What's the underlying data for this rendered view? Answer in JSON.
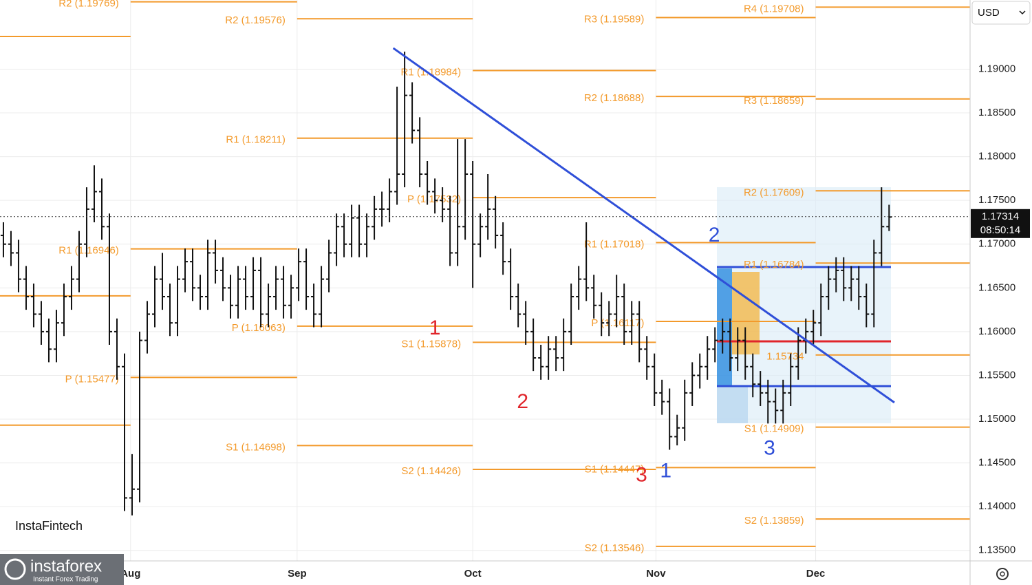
{
  "chart_data": {
    "type": "ohlc",
    "color": "#111111",
    "open": [
      1.171,
      1.17,
      1.169,
      1.166,
      1.164,
      1.162,
      1.16,
      1.158,
      1.161,
      1.164,
      1.166,
      1.17,
      1.174,
      1.176,
      1.172,
      1.16,
      1.156,
      1.141,
      1.142,
      1.159,
      1.162,
      1.166,
      1.164,
      1.161,
      1.166,
      1.168,
      1.165,
      1.164,
      1.169,
      1.167,
      1.165,
      1.163,
      1.166,
      1.164,
      1.167,
      1.162,
      1.164,
      1.166,
      1.163,
      1.165,
      1.168,
      1.164,
      1.162,
      1.166,
      1.169,
      1.172,
      1.17,
      1.173,
      1.17,
      1.172,
      1.174,
      1.174,
      1.176,
      1.178,
      1.187,
      1.183,
      1.178,
      1.176,
      1.175,
      1.174,
      1.169,
      1.172,
      1.178,
      1.17,
      1.172,
      1.174,
      1.171,
      1.168,
      1.164,
      1.162,
      1.16,
      1.157,
      1.156,
      1.158,
      1.157,
      1.16,
      1.164,
      1.166,
      1.165,
      1.163,
      1.161,
      1.162,
      1.164,
      1.16,
      1.162,
      1.158,
      1.156,
      1.153,
      1.152,
      1.148,
      1.149,
      1.153,
      1.155,
      1.156,
      1.158,
      1.159,
      1.16,
      1.157,
      1.159,
      1.156,
      1.154,
      1.153,
      1.152,
      1.151,
      1.153,
      1.156,
      1.159,
      1.16,
      1.161,
      1.164,
      1.166,
      1.167,
      1.165,
      1.166,
      1.164,
      1.162,
      1.169,
      1.172
    ],
    "high": [
      1.1725,
      1.1715,
      1.1705,
      1.1675,
      1.1655,
      1.1635,
      1.1615,
      1.1625,
      1.1655,
      1.1675,
      1.1715,
      1.1765,
      1.179,
      1.1775,
      1.1735,
      1.1615,
      1.1575,
      1.146,
      1.16,
      1.1635,
      1.1675,
      1.169,
      1.1655,
      1.1675,
      1.1695,
      1.1695,
      1.1665,
      1.1705,
      1.1705,
      1.1685,
      1.1665,
      1.1675,
      1.1675,
      1.1685,
      1.1685,
      1.1655,
      1.1675,
      1.1675,
      1.1665,
      1.1695,
      1.1695,
      1.1655,
      1.1675,
      1.1705,
      1.1735,
      1.1735,
      1.1745,
      1.1745,
      1.1735,
      1.1755,
      1.176,
      1.1775,
      1.188,
      1.192,
      1.1885,
      1.1845,
      1.1795,
      1.1775,
      1.1765,
      1.1755,
      1.182,
      1.182,
      1.1795,
      1.1735,
      1.178,
      1.1755,
      1.1725,
      1.1695,
      1.1655,
      1.1635,
      1.1615,
      1.1585,
      1.1595,
      1.1595,
      1.1615,
      1.1655,
      1.1675,
      1.1725,
      1.1665,
      1.1645,
      1.1635,
      1.1665,
      1.1655,
      1.1635,
      1.1635,
      1.1595,
      1.1575,
      1.1545,
      1.1535,
      1.1505,
      1.1545,
      1.1565,
      1.1575,
      1.1595,
      1.1605,
      1.1615,
      1.1615,
      1.1605,
      1.1605,
      1.1575,
      1.1555,
      1.1545,
      1.1535,
      1.1545,
      1.1575,
      1.1605,
      1.1615,
      1.1625,
      1.1655,
      1.1675,
      1.1685,
      1.1685,
      1.1675,
      1.1675,
      1.1655,
      1.1705,
      1.1765,
      1.1745
    ],
    "low": [
      1.1685,
      1.1675,
      1.1645,
      1.1625,
      1.1605,
      1.1585,
      1.1565,
      1.1565,
      1.1595,
      1.1625,
      1.1645,
      1.1685,
      1.1725,
      1.1705,
      1.1585,
      1.1545,
      1.1395,
      1.139,
      1.1405,
      1.1575,
      1.1605,
      1.1625,
      1.1595,
      1.1595,
      1.1645,
      1.1635,
      1.1625,
      1.1625,
      1.1655,
      1.1635,
      1.1615,
      1.1615,
      1.1625,
      1.1625,
      1.1605,
      1.1605,
      1.1625,
      1.1615,
      1.1615,
      1.1635,
      1.1625,
      1.1605,
      1.1605,
      1.1645,
      1.1675,
      1.1685,
      1.1685,
      1.1685,
      1.1685,
      1.1705,
      1.172,
      1.1725,
      1.1745,
      1.1765,
      1.1815,
      1.1765,
      1.1745,
      1.1735,
      1.1725,
      1.1675,
      1.1675,
      1.1705,
      1.165,
      1.1685,
      1.1705,
      1.1695,
      1.1665,
      1.1625,
      1.1605,
      1.1585,
      1.1555,
      1.1545,
      1.1545,
      1.1555,
      1.1555,
      1.1585,
      1.1625,
      1.1635,
      1.1615,
      1.1595,
      1.1595,
      1.1605,
      1.1585,
      1.1585,
      1.1565,
      1.1545,
      1.1515,
      1.1505,
      1.1465,
      1.147,
      1.1475,
      1.1515,
      1.1535,
      1.1545,
      1.1565,
      1.1575,
      1.1555,
      1.1555,
      1.1545,
      1.1525,
      1.1515,
      1.1495,
      1.1495,
      1.1495,
      1.1515,
      1.1545,
      1.1575,
      1.1585,
      1.1595,
      1.1625,
      1.1645,
      1.1635,
      1.1635,
      1.1625,
      1.1605,
      1.1605,
      1.1675,
      1.1715
    ],
    "close": [
      1.17,
      1.169,
      1.166,
      1.164,
      1.162,
      1.16,
      1.158,
      1.161,
      1.164,
      1.166,
      1.17,
      1.174,
      1.176,
      1.172,
      1.16,
      1.156,
      1.141,
      1.142,
      1.159,
      1.162,
      1.166,
      1.164,
      1.161,
      1.166,
      1.168,
      1.165,
      1.164,
      1.169,
      1.167,
      1.165,
      1.163,
      1.166,
      1.164,
      1.167,
      1.162,
      1.164,
      1.166,
      1.163,
      1.165,
      1.168,
      1.164,
      1.162,
      1.166,
      1.169,
      1.172,
      1.17,
      1.173,
      1.17,
      1.172,
      1.174,
      1.174,
      1.176,
      1.178,
      1.187,
      1.183,
      1.178,
      1.176,
      1.175,
      1.174,
      1.169,
      1.172,
      1.178,
      1.17,
      1.172,
      1.174,
      1.171,
      1.168,
      1.164,
      1.162,
      1.16,
      1.157,
      1.156,
      1.158,
      1.157,
      1.16,
      1.164,
      1.166,
      1.165,
      1.163,
      1.161,
      1.162,
      1.164,
      1.16,
      1.162,
      1.158,
      1.156,
      1.153,
      1.152,
      1.148,
      1.149,
      1.153,
      1.155,
      1.156,
      1.158,
      1.159,
      1.16,
      1.157,
      1.159,
      1.156,
      1.154,
      1.153,
      1.152,
      1.151,
      1.153,
      1.156,
      1.159,
      1.16,
      1.161,
      1.164,
      1.166,
      1.167,
      1.165,
      1.166,
      1.164,
      1.162,
      1.169,
      1.172,
      1.1731
    ],
    "xlim": [
      -0.45,
      127.7
    ],
    "ylim": [
      1.1338,
      1.1979
    ],
    "xticks": [
      {
        "value": 16.8,
        "label": "Aug"
      },
      {
        "value": 38.8,
        "label": "Sep"
      },
      {
        "value": 62,
        "label": "Oct"
      },
      {
        "value": 86.2,
        "label": "Nov"
      },
      {
        "value": 107.3,
        "label": "Dec"
      }
    ],
    "yticks": [
      {
        "value": 1.135,
        "label": "1.13500"
      },
      {
        "value": 1.14,
        "label": "1.14000"
      },
      {
        "value": 1.145,
        "label": "1.14500"
      },
      {
        "value": 1.15,
        "label": "1.15000"
      },
      {
        "value": 1.155,
        "label": "1.15500"
      },
      {
        "value": 1.16,
        "label": "1.16000"
      },
      {
        "value": 1.165,
        "label": "1.16500"
      },
      {
        "value": 1.17,
        "label": "1.17000"
      },
      {
        "value": 1.175,
        "label": "1.17500"
      },
      {
        "value": 1.18,
        "label": "1.18000"
      },
      {
        "value": 1.185,
        "label": "1.18500"
      },
      {
        "value": 1.19,
        "label": "1.19000"
      }
    ],
    "grid": true,
    "pivot_color": "#f39a2b",
    "pivots": [
      {
        "x": [
          -0.45,
          16.8
        ],
        "levels": [
          {
            "value": 1.19373
          },
          {
            "value": 1.16409
          },
          {
            "value": 1.14931
          }
        ]
      },
      {
        "x": [
          16.8,
          38.8
        ],
        "levels": [
          {
            "label": "R2 (1.19769)",
            "value": 1.19769
          },
          {
            "label": "R1 (1.16946)",
            "value": 1.16946
          },
          {
            "label": "P (1.15477)",
            "value": 1.15477
          }
        ]
      },
      {
        "x": [
          38.8,
          62
        ],
        "levels": [
          {
            "label": "R2 (1.19576)",
            "value": 1.19576
          },
          {
            "label": "R1 (1.18211)",
            "value": 1.18211
          },
          {
            "label": "P (1.16063)",
            "value": 1.16063
          },
          {
            "label": "S1 (1.14698)",
            "value": 1.14698
          }
        ]
      },
      {
        "x": [
          62,
          86.2
        ],
        "levels": [
          {
            "label": "R1 (1.18984)",
            "value": 1.18984
          },
          {
            "label": "P (1.17532)",
            "value": 1.17532
          },
          {
            "label": "S1 (1.15878)",
            "value": 1.15878
          },
          {
            "label": "S2 (1.14426)",
            "value": 1.14426
          }
        ]
      },
      {
        "x": [
          86.2,
          107.3
        ],
        "levels": [
          {
            "label": "R3 (1.19589)",
            "value": 1.19589
          },
          {
            "label": "R2 (1.18688)",
            "value": 1.18688
          },
          {
            "label": "R1 (1.17018)",
            "value": 1.17018
          },
          {
            "label": "P (1.16117)",
            "value": 1.16117
          },
          {
            "label": "S1 (1.14447)",
            "value": 1.14447
          },
          {
            "label": "S2 (1.13546)",
            "value": 1.13546
          }
        ]
      },
      {
        "x": [
          107.3,
          127.7
        ],
        "levels": [
          {
            "label": "R4 (1.19708)",
            "value": 1.19708
          },
          {
            "label": "R3 (1.18659)",
            "value": 1.18659
          },
          {
            "label": "R2 (1.17609)",
            "value": 1.17609
          },
          {
            "label": "R1 (1.16784)",
            "value": 1.16784
          },
          {
            "label": "1.15734",
            "value": 1.15734
          },
          {
            "label": "S1 (1.14909)",
            "value": 1.14909
          },
          {
            "label": "S2 (1.13859)",
            "value": 1.13859
          }
        ]
      }
    ],
    "trendline": {
      "x": [
        51.5,
        117.7
      ],
      "y": [
        1.1924,
        1.1519
      ],
      "color": "#2f4fd8"
    },
    "annotations": [
      {
        "text": "1",
        "x": 57.0,
        "y": 1.16031,
        "color": "#e0252b"
      },
      {
        "text": "2",
        "x": 68.6,
        "y": 1.1519,
        "color": "#e0252b"
      },
      {
        "text": "3",
        "x": 84.3,
        "y": 1.14349,
        "color": "#e0252b"
      },
      {
        "text": "2",
        "x": 93.9,
        "y": 1.17093,
        "color": "#2f4fd8"
      },
      {
        "text": "1",
        "x": 87.5,
        "y": 1.14396,
        "color": "#2f4fd8"
      },
      {
        "text": "3",
        "x": 101.2,
        "y": 1.14656,
        "color": "#2f4fd8"
      }
    ],
    "last_price": 1.17314,
    "countdown": "08:50:14"
  },
  "ui": {
    "currency": "USD",
    "watermark": "InstaFintech",
    "logo": "instaforex",
    "logo_tagline": "Instant Forex Trading"
  }
}
